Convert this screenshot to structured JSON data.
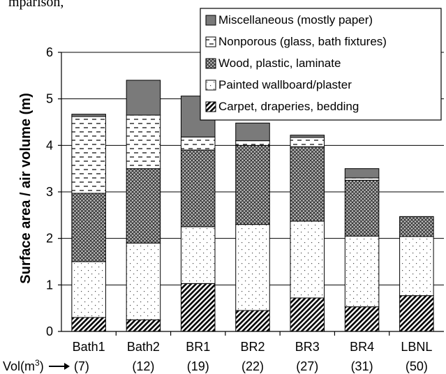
{
  "header_fragment": "mparison,",
  "chart_data": {
    "type": "bar",
    "stacked": true,
    "categories": [
      "Bath1",
      "Bath2",
      "BR1",
      "BR2",
      "BR3",
      "BR4",
      "LBNL"
    ],
    "volumes": [
      "(7)",
      "(12)",
      "(19)",
      "(22)",
      "(27)",
      "(31)",
      "(50)"
    ],
    "volume_axis_label": "Vol(m",
    "volume_axis_sup": "3",
    "volume_axis_suffix": ")",
    "ylabel": "Surface area / air volume (m)",
    "ylim": [
      0,
      6
    ],
    "yticks": [
      "0",
      "1",
      "2",
      "3",
      "4",
      "5",
      "6"
    ],
    "grid": true,
    "legend_position": "top-right",
    "series": [
      {
        "name": "Carpet, draperies, bedding",
        "pattern": "diag",
        "values": [
          0.3,
          0.25,
          1.03,
          0.45,
          0.72,
          0.53,
          0.77
        ]
      },
      {
        "name": "Painted wallboard/plaster",
        "pattern": "dots",
        "values": [
          1.2,
          1.65,
          1.22,
          1.85,
          1.65,
          1.52,
          1.27
        ]
      },
      {
        "name": "Wood, plastic, laminate",
        "pattern": "cross",
        "values": [
          1.47,
          1.6,
          1.65,
          1.7,
          1.6,
          1.2,
          0.43
        ]
      },
      {
        "name": "Nonporous (glass, bath fixtures)",
        "pattern": "dash",
        "values": [
          1.65,
          1.15,
          0.28,
          0.1,
          0.2,
          0.05,
          0.0
        ]
      },
      {
        "name": "Miscellaneous (mostly paper)",
        "pattern": "solid",
        "values": [
          0.05,
          0.75,
          0.88,
          0.38,
          0.05,
          0.2,
          0.0
        ]
      }
    ],
    "legend_order": [
      4,
      3,
      2,
      1,
      0
    ]
  }
}
